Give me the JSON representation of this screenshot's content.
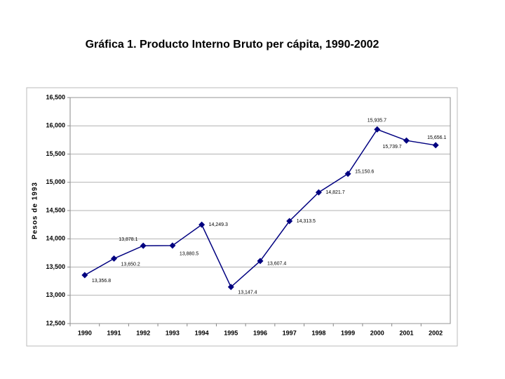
{
  "chart_data": {
    "type": "line",
    "title": "Gráfica 1. Producto Interno Bruto per cápita, 1990-2002",
    "y_label": "Pesos de 1993",
    "categories": [
      "1990",
      "1991",
      "1992",
      "1993",
      "1994",
      "1995",
      "1996",
      "1997",
      "1998",
      "1999",
      "2000",
      "2001",
      "2002"
    ],
    "series": [
      {
        "name": "PIB per cápita",
        "color": "#000080",
        "values": [
          13356.8,
          13650.2,
          13878.1,
          13880.5,
          14249.3,
          13147.4,
          13607.4,
          14313.5,
          14821.7,
          15150.6,
          15935.7,
          15739.7,
          15656.1
        ],
        "value_labels": [
          "13,356.8",
          "13,650.2",
          "13,878.1",
          "13,880.5",
          "14,249.3",
          "13,147.4",
          "13,607.4",
          "14,313.5",
          "14,821.7",
          "15,150.6",
          "15,935.7",
          "15,739.7",
          "15,656.1"
        ]
      }
    ],
    "ylim": [
      12500,
      16500
    ],
    "yticks": [
      {
        "value": 12500,
        "label": "12,500"
      },
      {
        "value": 13000,
        "label": "13,000"
      },
      {
        "value": 13500,
        "label": "13,500"
      },
      {
        "value": 14000,
        "label": "14,000"
      },
      {
        "value": 14500,
        "label": "14,500"
      },
      {
        "value": 15000,
        "label": "15,000"
      },
      {
        "value": 15500,
        "label": "15,500"
      },
      {
        "value": 16000,
        "label": "16,000"
      },
      {
        "value": 16500,
        "label": "16,500"
      }
    ],
    "grid": true
  }
}
